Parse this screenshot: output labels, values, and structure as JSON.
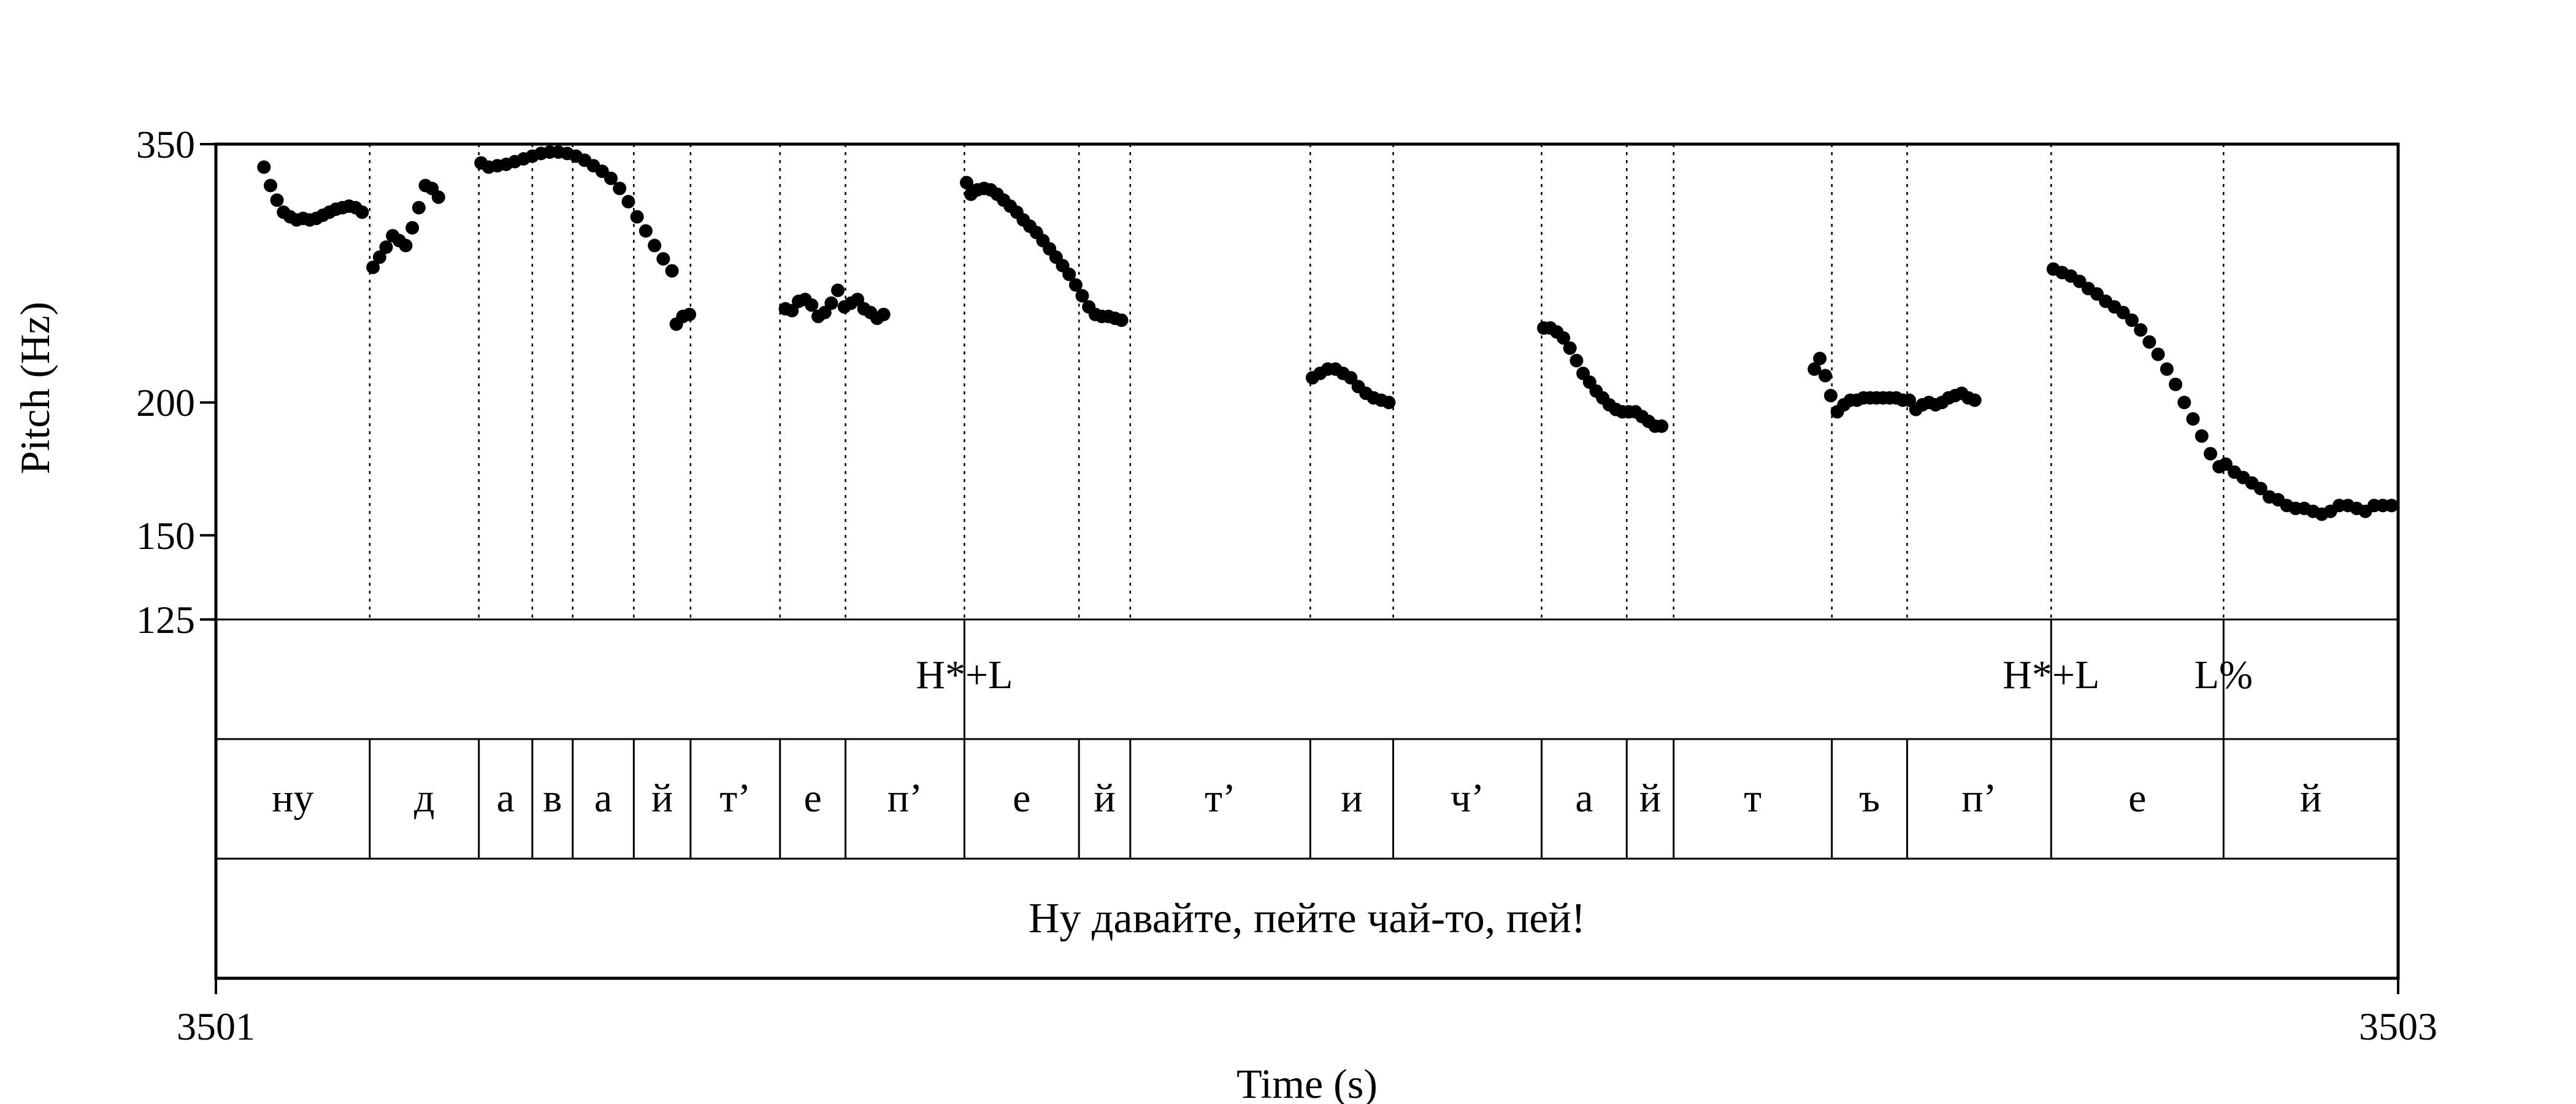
{
  "chart_data": {
    "type": "scatter",
    "title": "",
    "xlabel": "Time (s)",
    "ylabel": "Pitch (Hz)",
    "xlim": [
      3501,
      3503
    ],
    "ylim": [
      125,
      350
    ],
    "y_scale": "log",
    "x_ticks": [
      "3501",
      "3503"
    ],
    "y_ticks": [
      {
        "value": 350,
        "label": "350"
      },
      {
        "value": 200,
        "label": "200"
      },
      {
        "value": 150,
        "label": "150"
      },
      {
        "value": 125,
        "label": "125"
      }
    ],
    "grid": false,
    "boundaries": [
      3501.141,
      3501.241,
      3501.29,
      3501.327,
      3501.383,
      3501.435,
      3501.517,
      3501.577,
      3501.686,
      3501.791,
      3501.838,
      3502.003,
      3502.079,
      3502.215,
      3502.293,
      3502.336,
      3502.481,
      3502.55,
      3502.682,
      3502.84
    ],
    "tones": [
      {
        "t": 3501.686,
        "label": "H*+L"
      },
      {
        "t": 3502.682,
        "label": "H*+L"
      },
      {
        "t": 3502.84,
        "label": "L%"
      }
    ],
    "segments": [
      {
        "start": 3501.0,
        "end": 3501.141,
        "label": "ну"
      },
      {
        "start": 3501.141,
        "end": 3501.241,
        "label": "д"
      },
      {
        "start": 3501.241,
        "end": 3501.29,
        "label": "а"
      },
      {
        "start": 3501.29,
        "end": 3501.327,
        "label": "в"
      },
      {
        "start": 3501.327,
        "end": 3501.383,
        "label": "а"
      },
      {
        "start": 3501.383,
        "end": 3501.435,
        "label": "й"
      },
      {
        "start": 3501.435,
        "end": 3501.517,
        "label": "т’"
      },
      {
        "start": 3501.517,
        "end": 3501.577,
        "label": "е"
      },
      {
        "start": 3501.577,
        "end": 3501.686,
        "label": "п’"
      },
      {
        "start": 3501.686,
        "end": 3501.791,
        "label": "е"
      },
      {
        "start": 3501.791,
        "end": 3501.838,
        "label": "й"
      },
      {
        "start": 3501.838,
        "end": 3502.003,
        "label": "т’"
      },
      {
        "start": 3502.003,
        "end": 3502.079,
        "label": "и"
      },
      {
        "start": 3502.079,
        "end": 3502.215,
        "label": "ч’"
      },
      {
        "start": 3502.215,
        "end": 3502.293,
        "label": "а"
      },
      {
        "start": 3502.293,
        "end": 3502.336,
        "label": "й"
      },
      {
        "start": 3502.336,
        "end": 3502.481,
        "label": "т"
      },
      {
        "start": 3502.481,
        "end": 3502.55,
        "label": "ъ"
      },
      {
        "start": 3502.55,
        "end": 3502.682,
        "label": "п’"
      },
      {
        "start": 3502.682,
        "end": 3502.84,
        "label": "е"
      },
      {
        "start": 3502.84,
        "end": 3503.0,
        "label": "й"
      }
    ],
    "sentence": "Ну давайте, пейте чай-то, пей!",
    "pitch_contours": [
      {
        "x": [
          3501.044,
          3501.05,
          3501.056,
          3501.062,
          3501.068,
          3501.074,
          3501.08,
          3501.086,
          3501.092,
          3501.098,
          3501.104,
          3501.11,
          3501.116,
          3501.122,
          3501.128,
          3501.134
        ],
        "y": [
          333,
          320,
          310,
          302,
          299,
          297,
          298,
          297,
          298,
          300,
          302,
          304,
          305,
          306,
          305,
          302
        ]
      },
      {
        "x": [
          3501.144,
          3501.15,
          3501.156,
          3501.162,
          3501.168,
          3501.174,
          3501.18,
          3501.186,
          3501.192,
          3501.198,
          3501.204
        ],
        "y": [
          268,
          274,
          280,
          287,
          284,
          281,
          292,
          305,
          320,
          318,
          312
        ]
      },
      {
        "x": [
          3501.243,
          3501.25,
          3501.258,
          3501.266,
          3501.274,
          3501.282,
          3501.29,
          3501.298,
          3501.306,
          3501.314,
          3501.322,
          3501.33,
          3501.338,
          3501.346,
          3501.354,
          3501.362,
          3501.37,
          3501.378,
          3501.386,
          3501.394,
          3501.402,
          3501.41,
          3501.418
        ],
        "y": [
          336,
          333,
          334,
          335,
          337,
          339,
          341,
          343,
          344,
          344,
          343,
          341,
          338,
          334,
          330,
          325,
          318,
          309,
          299,
          290,
          281,
          273,
          266
        ]
      },
      {
        "x": [
          3501.422,
          3501.428,
          3501.434
        ],
        "y": [
          237,
          241,
          242
        ]
      },
      {
        "x": [
          3501.522,
          3501.528,
          3501.534,
          3501.54,
          3501.546,
          3501.552,
          3501.558,
          3501.564,
          3501.57,
          3501.576,
          3501.582,
          3501.588,
          3501.594,
          3501.6,
          3501.606,
          3501.612
        ],
        "y": [
          245,
          244,
          249,
          250,
          247,
          241,
          243,
          248,
          255,
          246,
          248,
          250,
          245,
          243,
          240,
          242
        ]
      },
      {
        "x": [
          3501.688,
          3501.692,
          3501.698,
          3501.704,
          3501.71,
          3501.716,
          3501.722,
          3501.728,
          3501.734,
          3501.74,
          3501.746,
          3501.752,
          3501.758,
          3501.764,
          3501.77,
          3501.776,
          3501.782,
          3501.788,
          3501.794,
          3501.8,
          3501.806,
          3501.812,
          3501.818,
          3501.824,
          3501.83
        ],
        "y": [
          322,
          314,
          317,
          318,
          317,
          314,
          310,
          306,
          302,
          297,
          293,
          289,
          284,
          279,
          274,
          269,
          264,
          258,
          252,
          246,
          242,
          241,
          241,
          240,
          239
        ]
      },
      {
        "x": [
          3502.005,
          3502.012,
          3502.019,
          3502.026,
          3502.033,
          3502.04,
          3502.047,
          3502.054,
          3502.061,
          3502.068,
          3502.075
        ],
        "y": [
          211,
          213,
          215,
          215,
          213,
          211,
          207,
          204,
          202,
          201,
          200
        ]
      },
      {
        "x": [
          3502.217,
          3502.223,
          3502.229,
          3502.235,
          3502.241,
          3502.247,
          3502.253,
          3502.259,
          3502.265,
          3502.271,
          3502.277,
          3502.283,
          3502.289,
          3502.295,
          3502.301,
          3502.307,
          3502.313,
          3502.319,
          3502.325
        ],
        "y": [
          235,
          235,
          233,
          230,
          225,
          219,
          213,
          209,
          205,
          202,
          199,
          197,
          196,
          196,
          196,
          194,
          192,
          190,
          190
        ]
      },
      {
        "x": [
          3502.465,
          3502.47,
          3502.475,
          3502.48,
          3502.486,
          3502.492,
          3502.498,
          3502.504,
          3502.51,
          3502.516,
          3502.522,
          3502.528,
          3502.534,
          3502.54,
          3502.546,
          3502.552,
          3502.558,
          3502.564,
          3502.57,
          3502.576,
          3502.582,
          3502.588,
          3502.594,
          3502.6,
          3502.606,
          3502.612
        ],
        "y": [
          215,
          220,
          212,
          203,
          196,
          199,
          201,
          201,
          202,
          202,
          202,
          202,
          202,
          202,
          201,
          201,
          197,
          199,
          200,
          199,
          200,
          202,
          203,
          204,
          202,
          201
        ]
      },
      {
        "x": [
          3502.684,
          3502.692,
          3502.7,
          3502.708,
          3502.716,
          3502.724,
          3502.732,
          3502.74,
          3502.748,
          3502.756,
          3502.764,
          3502.772,
          3502.78,
          3502.788,
          3502.796,
          3502.804,
          3502.812,
          3502.82,
          3502.828,
          3502.836,
          3502.842,
          3502.85,
          3502.858,
          3502.866,
          3502.874,
          3502.882,
          3502.89,
          3502.898,
          3502.906,
          3502.914,
          3502.922,
          3502.93,
          3502.938,
          3502.946,
          3502.954,
          3502.962,
          3502.97,
          3502.978,
          3502.986,
          3502.994
        ],
        "y": [
          267,
          265,
          263,
          260,
          256,
          253,
          249,
          246,
          243,
          239,
          234,
          228,
          222,
          215,
          208,
          200,
          193,
          186,
          179,
          174,
          175,
          172,
          170,
          168,
          166,
          163,
          162,
          160,
          159,
          159,
          158,
          157,
          158,
          160,
          160,
          159,
          158,
          160,
          160,
          160
        ]
      }
    ]
  }
}
